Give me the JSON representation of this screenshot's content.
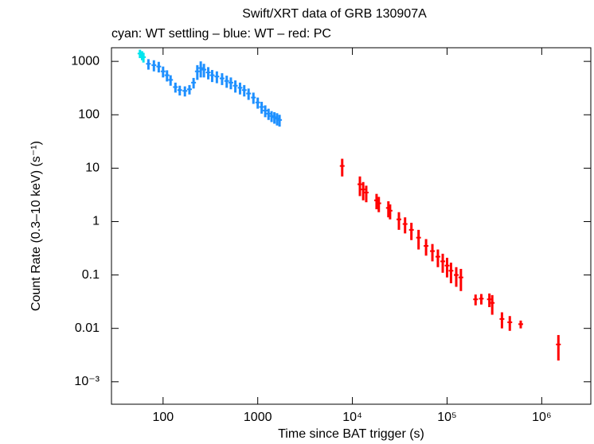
{
  "chart_data": {
    "type": "errorbar",
    "title": "Swift/XRT data of GRB 130907A",
    "subtitle": "cyan: WT settling – blue: WT – red: PC",
    "x_label": "Time since BAT trigger (s)",
    "y_label": "Count Rate (0.3–10 keV) (s⁻¹)",
    "log_x": true,
    "log_y": true,
    "xlim": [
      28.5,
      3300000
    ],
    "ylim": [
      0.00038,
      1800
    ],
    "xticks": [
      100,
      1000,
      {
        "value": 10000,
        "label": "10⁴"
      },
      {
        "value": 100000,
        "label": "10⁵"
      },
      {
        "value": 1000000,
        "label": "10⁶"
      }
    ],
    "yticks": [
      1000,
      100,
      10,
      1,
      0.1,
      0.01,
      {
        "value": 0.001,
        "label": "10⁻³"
      }
    ],
    "series": [
      {
        "name": "WT settling",
        "color": "#00e5ee",
        "x": [
          57,
          60,
          62
        ],
        "values": [
          1400,
          1300,
          1200
        ],
        "errors": [
          250,
          250,
          250
        ]
      },
      {
        "name": "WT",
        "color": "#1e90ff",
        "x": [
          70,
          80,
          90,
          100,
          110,
          120,
          135,
          150,
          170,
          190,
          210,
          230,
          250,
          270,
          300,
          330,
          370,
          420,
          470,
          520,
          580,
          650,
          720,
          800,
          900,
          1000,
          1100,
          1200,
          1300,
          1400,
          1500,
          1600,
          1700
        ],
        "values": [
          900,
          850,
          800,
          650,
          550,
          450,
          330,
          290,
          280,
          300,
          400,
          650,
          750,
          700,
          620,
          550,
          520,
          480,
          430,
          400,
          350,
          320,
          290,
          250,
          210,
          170,
          140,
          120,
          105,
          95,
          90,
          85,
          80
        ],
        "errors": [
          200,
          200,
          180,
          150,
          130,
          100,
          70,
          60,
          60,
          60,
          90,
          200,
          250,
          200,
          160,
          140,
          130,
          120,
          110,
          100,
          90,
          80,
          70,
          60,
          50,
          40,
          35,
          30,
          25,
          22,
          22,
          22,
          20
        ]
      },
      {
        "name": "PC",
        "color": "#ff0000",
        "x": [
          7800,
          12000,
          13000,
          14000,
          18000,
          19000,
          24000,
          25000,
          31000,
          36000,
          42000,
          50000,
          60000,
          70000,
          80000,
          90000,
          100000,
          110000,
          125000,
          140000,
          200000,
          230000,
          280000,
          300000,
          380000,
          460000,
          600000,
          1500000
        ],
        "values": [
          11,
          5,
          4,
          3.5,
          2.5,
          2.2,
          1.8,
          1.6,
          1.1,
          0.9,
          0.7,
          0.5,
          0.35,
          0.28,
          0.22,
          0.18,
          0.15,
          0.12,
          0.1,
          0.09,
          0.035,
          0.036,
          0.035,
          0.03,
          0.015,
          0.013,
          0.012,
          0.005
        ],
        "errors": [
          4,
          2,
          1.5,
          1.2,
          0.8,
          0.7,
          0.6,
          0.5,
          0.4,
          0.3,
          0.25,
          0.2,
          0.12,
          0.1,
          0.08,
          0.07,
          0.06,
          0.05,
          0.04,
          0.04,
          0.008,
          0.008,
          0.01,
          0.012,
          0.005,
          0.004,
          0.002,
          0.0025
        ]
      }
    ]
  }
}
